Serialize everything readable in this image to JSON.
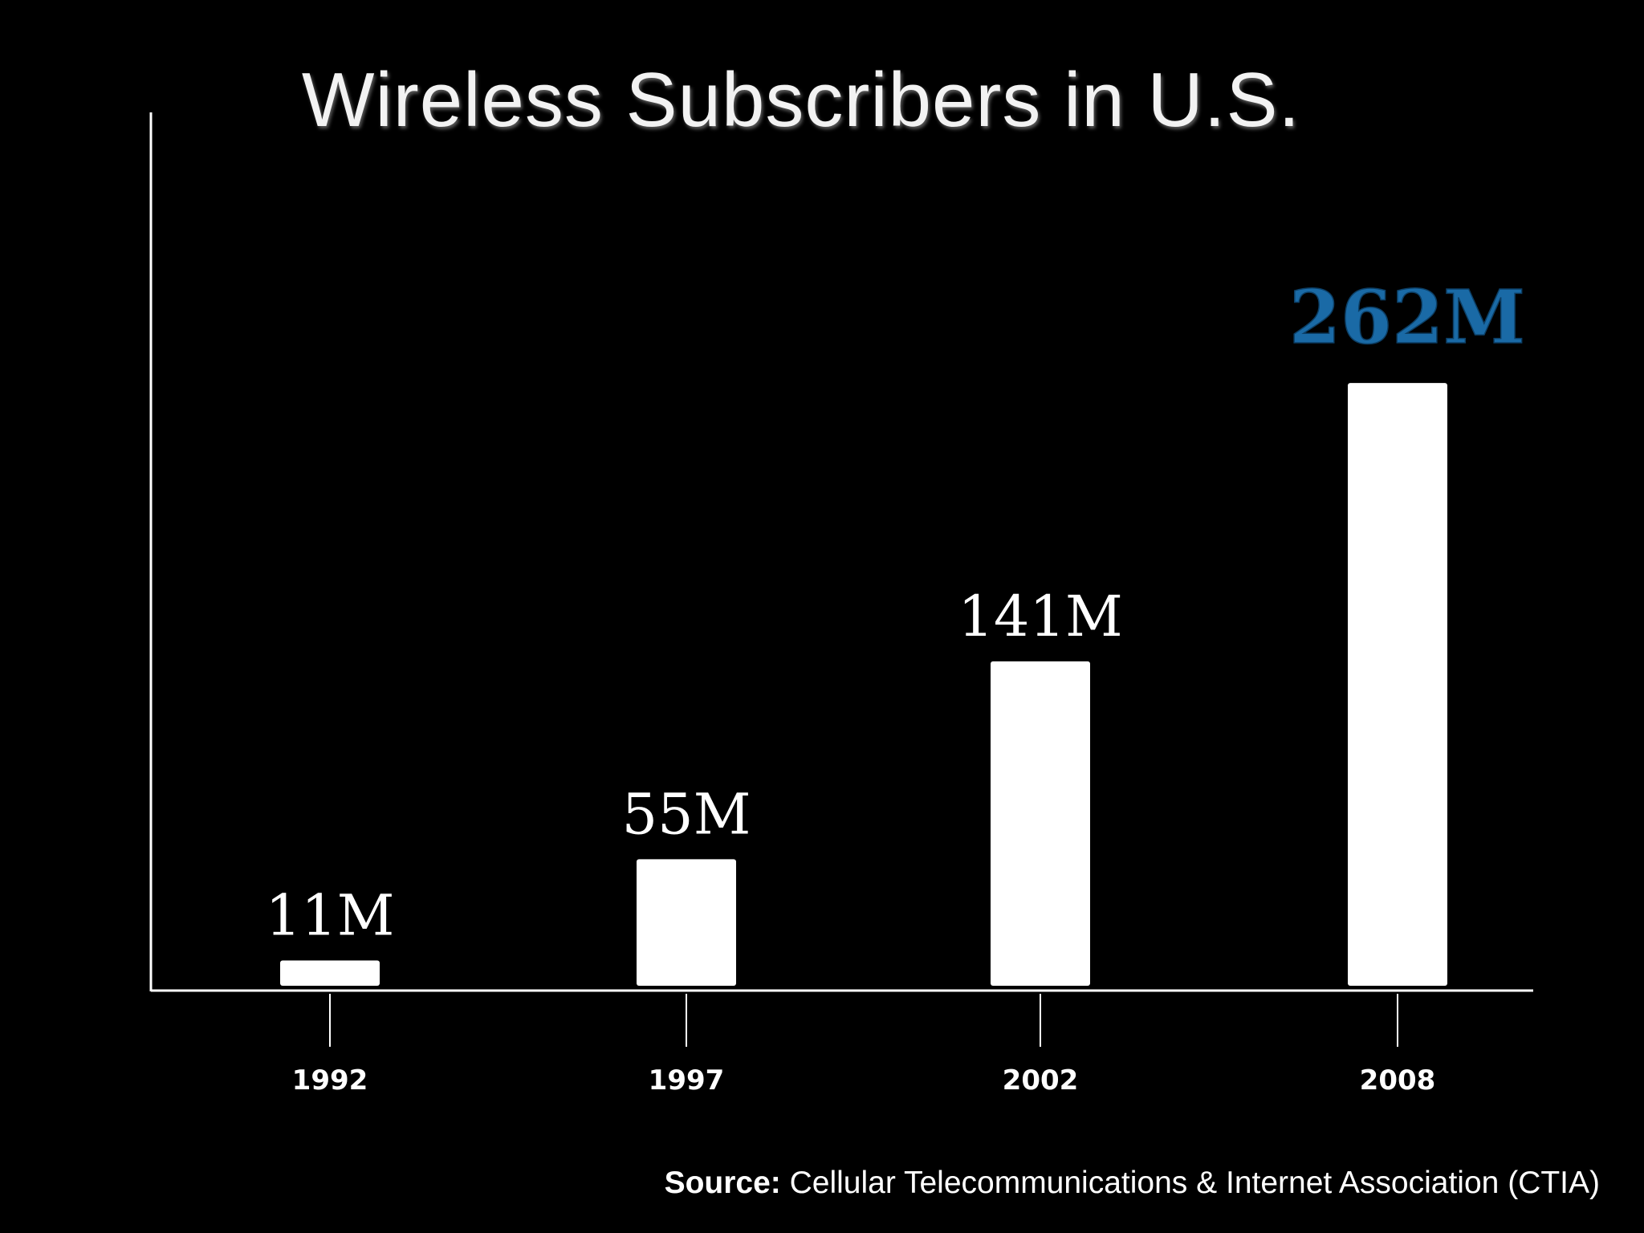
{
  "chart_data": {
    "type": "bar",
    "title": "Wireless Subscribers in U.S.",
    "categories": [
      "1992",
      "1997",
      "2002",
      "2008"
    ],
    "values": [
      11,
      55,
      141,
      262
    ],
    "value_labels": [
      "11M",
      "55M",
      "141M",
      "262M"
    ],
    "unit": "M",
    "xlabel": "",
    "ylabel": "",
    "ylim": [
      0,
      380
    ],
    "grid": false,
    "legend": "none",
    "highlight_index": 3,
    "colors": {
      "background": "#000000",
      "bar": "#ffffff",
      "axis": "#ffffff",
      "label": "#ffffff",
      "highlight": "#1a6aa6"
    }
  },
  "source": {
    "label": "Source:",
    "text": "Cellular Telecommunications & Internet Association (CTIA)"
  }
}
